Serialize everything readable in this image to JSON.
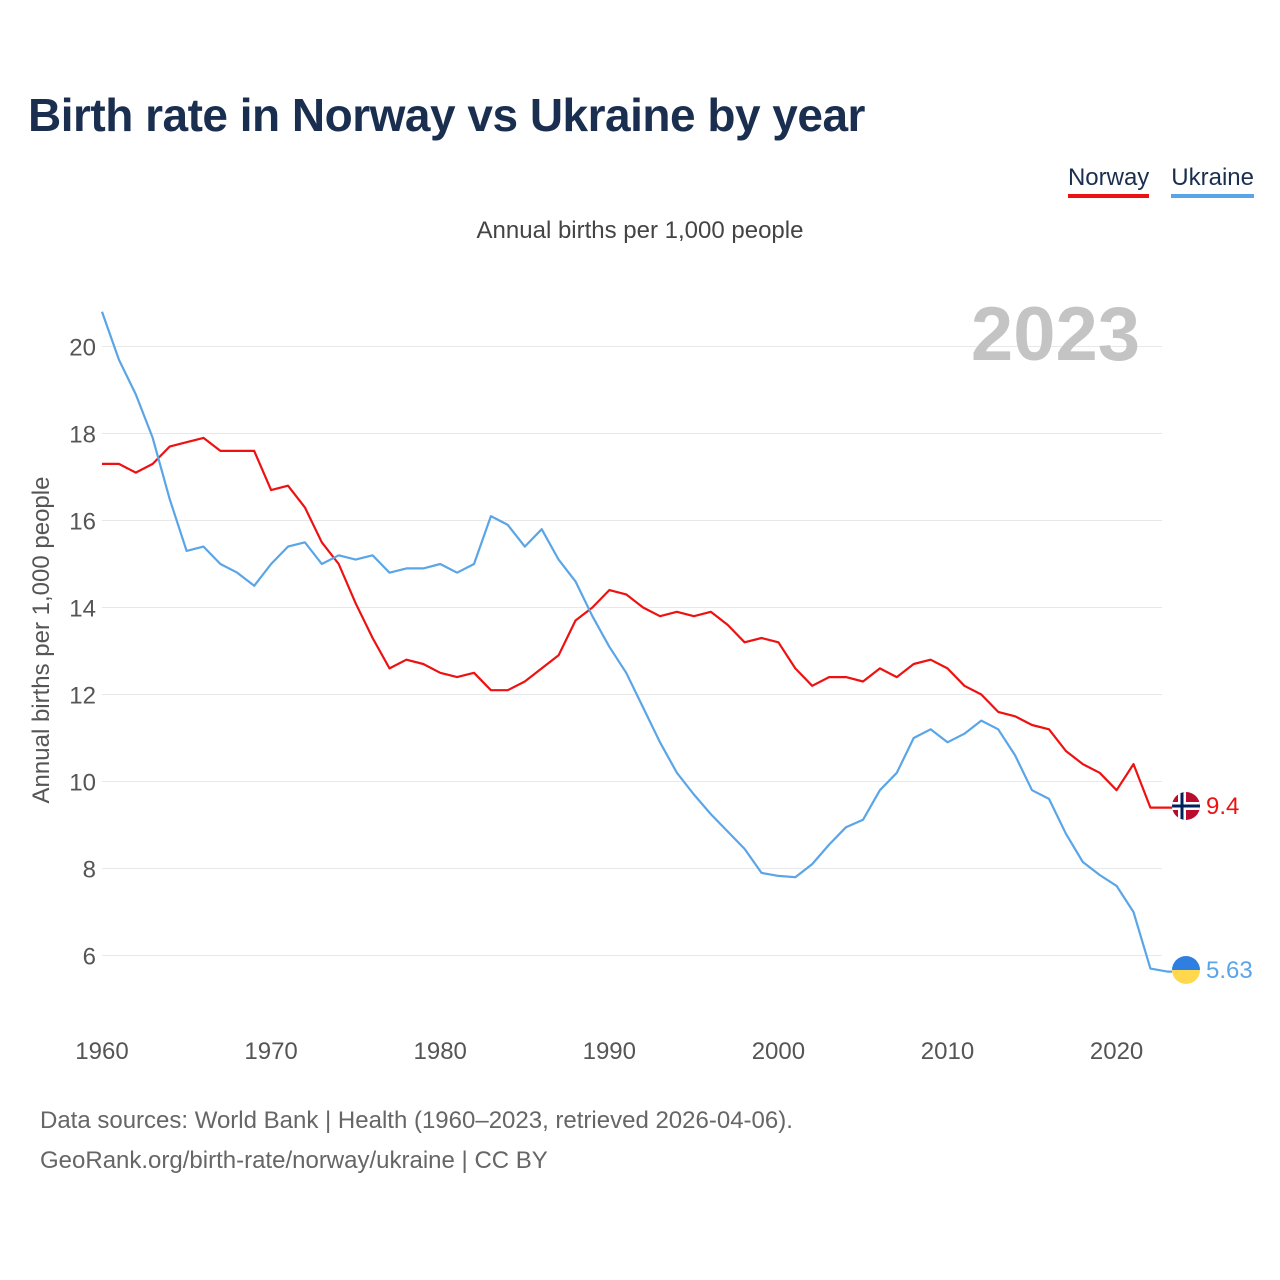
{
  "title": "Birth rate in Norway vs Ukraine by year",
  "legend": {
    "norway": "Norway",
    "ukraine": "Ukraine"
  },
  "subtitle": "Annual births per 1,000 people",
  "ylabel": "Annual births per 1,000 people",
  "year_overlay": "2023",
  "end_labels": {
    "norway": "9.4",
    "ukraine": "5.63"
  },
  "source": {
    "line1": "Data sources: World Bank | Health (1960–2023, retrieved 2026-04-06).",
    "line2": "GeoRank.org/birth-rate/norway/ukraine | CC BY"
  },
  "colors": {
    "norway": "#ee1111",
    "ukraine": "#5aa5e8",
    "title": "#1a2f50",
    "overlay": "#c4c4c4",
    "grid": "#e8e8e8"
  },
  "chart_data": {
    "type": "line",
    "title": "Birth rate in Norway vs Ukraine by year",
    "xlabel": "",
    "ylabel": "Annual births per 1,000 people",
    "x_range": [
      1960,
      2023
    ],
    "ylim": [
      4.8,
      21
    ],
    "yticks": [
      6,
      8,
      10,
      12,
      14,
      16,
      18,
      20
    ],
    "xticks": [
      1960,
      1970,
      1980,
      1990,
      2000,
      2010,
      2020
    ],
    "grid": true,
    "legend_position": "top-right",
    "x": [
      1960,
      1961,
      1962,
      1963,
      1964,
      1965,
      1966,
      1967,
      1968,
      1969,
      1970,
      1971,
      1972,
      1973,
      1974,
      1975,
      1976,
      1977,
      1978,
      1979,
      1980,
      1981,
      1982,
      1983,
      1984,
      1985,
      1986,
      1987,
      1988,
      1989,
      1990,
      1991,
      1992,
      1993,
      1994,
      1995,
      1996,
      1997,
      1998,
      1999,
      2000,
      2001,
      2002,
      2003,
      2004,
      2005,
      2006,
      2007,
      2008,
      2009,
      2010,
      2011,
      2012,
      2013,
      2014,
      2015,
      2016,
      2017,
      2018,
      2019,
      2020,
      2021,
      2022,
      2023
    ],
    "series": [
      {
        "name": "Norway",
        "key": "norway",
        "values": [
          17.3,
          17.3,
          17.1,
          17.3,
          17.7,
          17.8,
          17.9,
          17.6,
          17.6,
          17.6,
          16.7,
          16.8,
          16.3,
          15.5,
          15.0,
          14.1,
          13.3,
          12.6,
          12.8,
          12.7,
          12.5,
          12.4,
          12.5,
          12.1,
          12.1,
          12.3,
          12.6,
          12.9,
          13.7,
          14.0,
          14.4,
          14.3,
          14.0,
          13.8,
          13.9,
          13.8,
          13.9,
          13.6,
          13.2,
          13.3,
          13.2,
          12.6,
          12.2,
          12.4,
          12.4,
          12.3,
          12.6,
          12.4,
          12.7,
          12.8,
          12.6,
          12.2,
          12.0,
          11.6,
          11.5,
          11.3,
          11.2,
          10.7,
          10.4,
          10.2,
          9.8,
          10.4,
          9.4,
          9.4
        ]
      },
      {
        "name": "Ukraine",
        "key": "ukraine",
        "values": [
          20.8,
          19.7,
          18.9,
          17.9,
          16.5,
          15.3,
          15.4,
          15.0,
          14.8,
          14.5,
          15.0,
          15.4,
          15.5,
          15.0,
          15.2,
          15.1,
          15.2,
          14.8,
          14.9,
          14.9,
          15.0,
          14.8,
          15.0,
          16.1,
          15.9,
          15.4,
          15.8,
          15.1,
          14.6,
          13.8,
          13.1,
          12.5,
          11.7,
          10.9,
          10.2,
          9.7,
          9.25,
          8.85,
          8.45,
          7.9,
          7.83,
          7.8,
          8.1,
          8.55,
          8.95,
          9.12,
          9.8,
          10.2,
          11.0,
          11.2,
          10.9,
          11.1,
          11.4,
          11.2,
          10.6,
          9.8,
          9.6,
          8.8,
          8.15,
          7.85,
          7.6,
          7.0,
          5.7,
          5.63
        ]
      }
    ]
  }
}
